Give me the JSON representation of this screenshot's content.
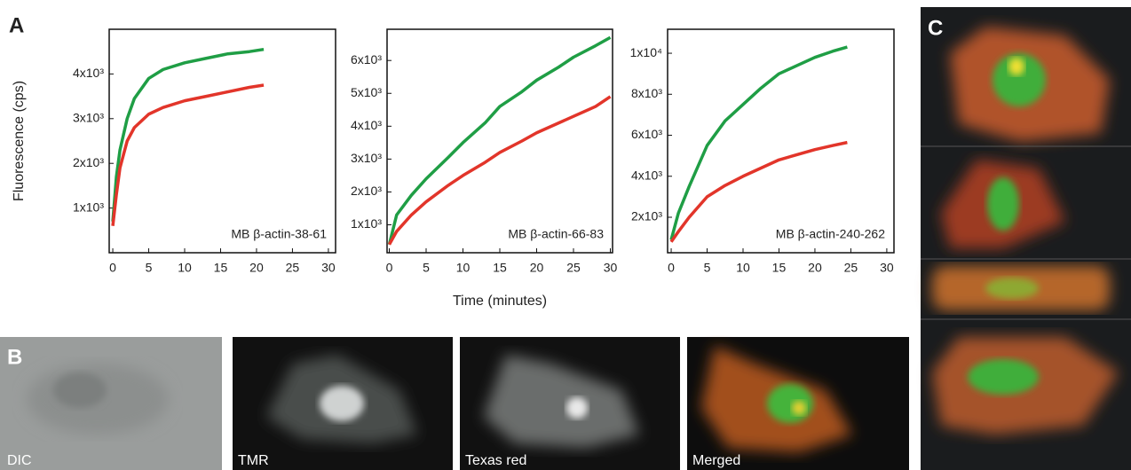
{
  "panel_labels": [
    "A",
    "B",
    "C"
  ],
  "image_labels": [
    "DIC",
    "TMR",
    "Texas red",
    "Merged"
  ],
  "chart_data": [
    {
      "type": "line",
      "y_label": "Fluorescence (cps)",
      "annotation": "MB β-actin-38-61",
      "x": [
        0,
        0.5,
        1,
        2,
        3,
        5,
        7,
        10,
        13,
        16,
        19,
        21
      ],
      "series": [
        {
          "color": "#1f9e45",
          "values": [
            700,
            1700,
            2300,
            3000,
            3450,
            3900,
            4100,
            4250,
            4350,
            4450,
            4500,
            4550
          ]
        },
        {
          "color": "#e2352a",
          "values": [
            600,
            1300,
            1900,
            2500,
            2800,
            3100,
            3250,
            3400,
            3500,
            3600,
            3700,
            3750
          ]
        }
      ],
      "xlim": [
        -0.5,
        31
      ],
      "ylim": [
        0,
        5000
      ],
      "xticks": [
        0,
        5,
        10,
        15,
        20,
        25,
        30
      ],
      "yticks": [
        {
          "value": 1000,
          "label": "1x10³"
        },
        {
          "value": 2000,
          "label": "2x10³"
        },
        {
          "value": 3000,
          "label": "3x10³"
        },
        {
          "value": 4000,
          "label": "4x10³"
        }
      ]
    },
    {
      "type": "line",
      "x_label": "Time (minutes)",
      "annotation": "MB β-actin-66-83",
      "x": [
        0,
        1,
        3,
        5,
        8,
        10,
        13,
        15,
        18,
        20,
        23,
        25,
        28,
        30
      ],
      "series": [
        {
          "color": "#1f9e45",
          "values": [
            400,
            1300,
            1900,
            2400,
            3050,
            3500,
            4100,
            4600,
            5050,
            5400,
            5800,
            6100,
            6450,
            6700
          ]
        },
        {
          "color": "#e2352a",
          "values": [
            400,
            800,
            1300,
            1700,
            2200,
            2500,
            2900,
            3200,
            3550,
            3800,
            4100,
            4300,
            4600,
            4900
          ]
        }
      ],
      "xlim": [
        -0.3,
        30.3
      ],
      "ylim": [
        150,
        6950
      ],
      "xticks": [
        0,
        5,
        10,
        15,
        20,
        25,
        30
      ],
      "yticks": [
        {
          "value": 1000,
          "label": "1x10³"
        },
        {
          "value": 2000,
          "label": "2x10³"
        },
        {
          "value": 3000,
          "label": "3x10³"
        },
        {
          "value": 4000,
          "label": "4x10³"
        },
        {
          "value": 5000,
          "label": "5x10³"
        },
        {
          "value": 6000,
          "label": "6x10³"
        }
      ]
    },
    {
      "type": "line",
      "annotation": "MB β-actin-240-262",
      "x": [
        0,
        1,
        2.5,
        5,
        7.5,
        10,
        12.5,
        15,
        17.5,
        20,
        22.5,
        24.5
      ],
      "series": [
        {
          "color": "#1f9e45",
          "values": [
            900,
            2200,
            3500,
            5500,
            6700,
            7500,
            8300,
            9000,
            9400,
            9800,
            10100,
            10300
          ]
        },
        {
          "color": "#e2352a",
          "values": [
            800,
            1300,
            2000,
            3000,
            3550,
            4000,
            4400,
            4800,
            5050,
            5300,
            5500,
            5650
          ]
        }
      ],
      "xlim": [
        -0.5,
        31
      ],
      "ylim": [
        270,
        11170
      ],
      "xticks": [
        0,
        5,
        10,
        15,
        20,
        25,
        30
      ],
      "yticks": [
        {
          "value": 2000,
          "label": "2x10³"
        },
        {
          "value": 4000,
          "label": "4x10³"
        },
        {
          "value": 6000,
          "label": "6x10³"
        },
        {
          "value": 8000,
          "label": "8x10³"
        },
        {
          "value": 10000,
          "label": "1x10⁴"
        }
      ]
    }
  ]
}
